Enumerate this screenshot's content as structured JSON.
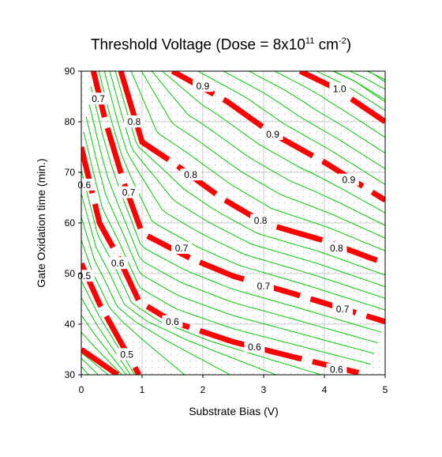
{
  "chart_data": {
    "type": "contour",
    "title": {
      "main": "Threshold Voltage (Dose = 8x10",
      "exp1": "11",
      "unit": " cm",
      "exp2": "-2",
      "close": ")"
    },
    "xlabel": "Substrate Bias (V)",
    "ylabel": "Gate Oxidation time (min.)",
    "xlim": [
      0,
      5
    ],
    "ylim": [
      30,
      90
    ],
    "x_ticks": [
      0,
      1,
      2,
      3,
      4,
      5
    ],
    "y_ticks": [
      30,
      40,
      50,
      60,
      70,
      80,
      90
    ],
    "grid": true,
    "colors": {
      "labeled_contours": "#ff0000",
      "minor_contours": "#00cc00",
      "grid": "#c8c8c8",
      "dots": "#bdbdbd"
    },
    "labeled_contours": [
      {
        "level": "0.5",
        "points": [
          [
            0,
            35
          ],
          [
            0.6,
            30
          ]
        ],
        "labels": []
      },
      {
        "level": "0.5",
        "points": [
          [
            0,
            52
          ],
          [
            0.3,
            44
          ],
          [
            0.6,
            37.5
          ],
          [
            0.95,
            30
          ]
        ],
        "labels": [
          [
            0.05,
            49.5
          ],
          [
            0.75,
            34
          ]
        ]
      },
      {
        "level": "0.6",
        "points": [
          [
            0,
            75
          ],
          [
            0.3,
            60
          ],
          [
            0.6,
            53.5
          ],
          [
            0.95,
            44.5
          ],
          [
            1.5,
            40.5
          ],
          [
            2.5,
            36.5
          ],
          [
            3.5,
            33.5
          ],
          [
            4.7,
            30
          ]
        ],
        "labels": [
          [
            0.05,
            67.5
          ],
          [
            0.6,
            52
          ],
          [
            1.5,
            40.5
          ],
          [
            2.85,
            35.5
          ],
          [
            4.2,
            31
          ]
        ]
      },
      {
        "level": "0.7",
        "points": [
          [
            0.2,
            90
          ],
          [
            0.4,
            80
          ],
          [
            0.7,
            68
          ],
          [
            1.0,
            58
          ],
          [
            1.8,
            53
          ],
          [
            2.5,
            49.5
          ],
          [
            3.5,
            46
          ],
          [
            5,
            40.5
          ]
        ],
        "labels": [
          [
            0.28,
            84.5
          ],
          [
            0.78,
            66
          ],
          [
            1.65,
            55
          ],
          [
            3.0,
            47.5
          ],
          [
            4.3,
            43
          ]
        ]
      },
      {
        "level": "0.8",
        "points": [
          [
            0.65,
            90
          ],
          [
            0.85,
            82
          ],
          [
            1.0,
            76
          ],
          [
            1.5,
            72
          ],
          [
            2.3,
            65
          ],
          [
            3,
            60
          ],
          [
            4,
            56.5
          ],
          [
            5,
            52
          ]
        ],
        "labels": [
          [
            0.87,
            80
          ],
          [
            1.8,
            69.5
          ],
          [
            2.95,
            60.5
          ],
          [
            4.2,
            55
          ]
        ]
      },
      {
        "level": "0.9",
        "points": [
          [
            1.5,
            90
          ],
          [
            2.4,
            84
          ],
          [
            3.1,
            78
          ],
          [
            4,
            72
          ],
          [
            5,
            64.5
          ]
        ],
        "labels": [
          [
            2.0,
            87
          ],
          [
            3.15,
            77.5
          ],
          [
            4.4,
            68.5
          ]
        ]
      },
      {
        "level": "1.0",
        "points": [
          [
            3.6,
            90
          ],
          [
            4.2,
            86.5
          ],
          [
            5,
            80
          ]
        ],
        "labels": [
          [
            4.25,
            86.5
          ]
        ]
      }
    ]
  }
}
